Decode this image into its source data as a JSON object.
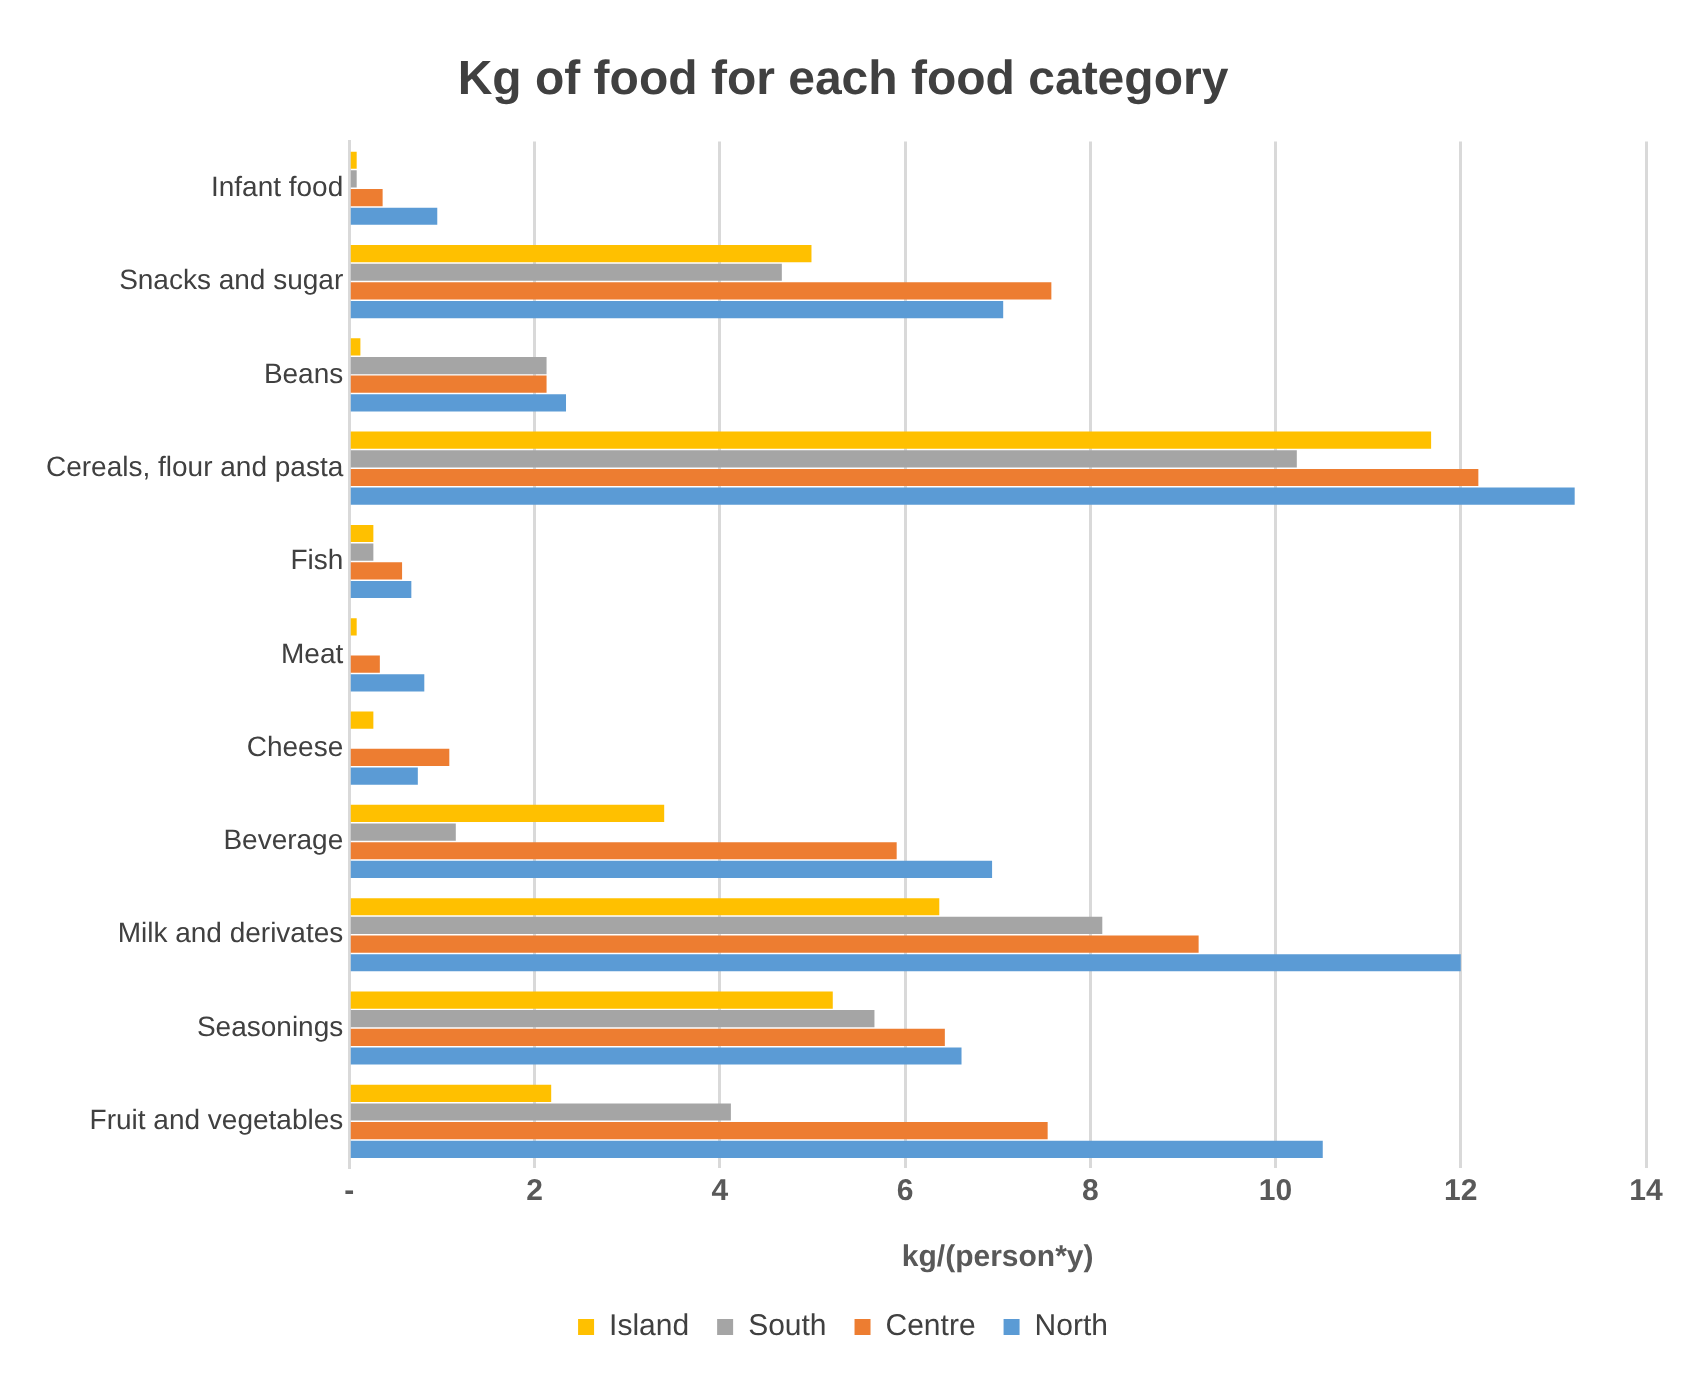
{
  "chart_data": {
    "type": "bar",
    "orientation": "horizontal",
    "title": "Kg of food for each food category",
    "xlabel": "kg/(person*y)",
    "categories": [
      "Infant food",
      "Snacks and sugar",
      "Beans",
      "Cereals, flour and pasta",
      "Fish",
      "Meat",
      "Cheese",
      "Beverage",
      "Milk and derivates",
      "Seasonings",
      "Fruit and vegetables"
    ],
    "series": [
      {
        "name": "Island",
        "color": "#ffc000",
        "values": [
          0.08,
          4.99,
          0.12,
          11.68,
          0.26,
          0.08,
          0.26,
          3.4,
          6.37,
          5.22,
          2.18
        ]
      },
      {
        "name": "South",
        "color": "#a5a5a5",
        "values": [
          0.08,
          4.67,
          2.13,
          10.23,
          0.26,
          0,
          0,
          1.15,
          8.13,
          5.67,
          4.12
        ]
      },
      {
        "name": "Centre",
        "color": "#ed7d31",
        "values": [
          0.36,
          7.58,
          2.13,
          12.19,
          0.57,
          0.33,
          1.08,
          5.91,
          9.17,
          6.43,
          7.54
        ]
      },
      {
        "name": "North",
        "color": "#5b9bd5",
        "values": [
          0.95,
          7.06,
          2.34,
          13.23,
          0.67,
          0.81,
          0.74,
          6.94,
          12.0,
          6.61,
          10.51
        ]
      }
    ],
    "xlim": [
      0,
      14
    ],
    "xticks": [
      {
        "value": 0,
        "label": "-"
      },
      2,
      4,
      6,
      8,
      10,
      12,
      14
    ],
    "grid": "x",
    "legend": "bottom"
  }
}
